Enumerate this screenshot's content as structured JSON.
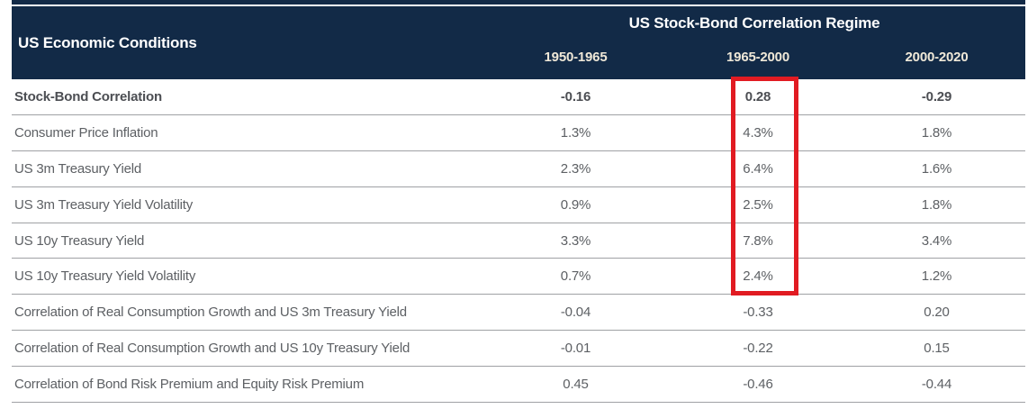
{
  "table": {
    "header": {
      "row_label_title": "US Economic Conditions",
      "group_title": "US Stock-Bond Correlation Regime",
      "columns": [
        "1950-1965",
        "1965-2000",
        "2000-2020"
      ]
    },
    "rows": [
      {
        "label": "Stock-Bond Correlation",
        "bold": true,
        "values": [
          "-0.16",
          "0.28",
          "-0.29"
        ]
      },
      {
        "label": "Consumer Price Inflation",
        "bold": false,
        "values": [
          "1.3%",
          "4.3%",
          "1.8%"
        ]
      },
      {
        "label": "US 3m Treasury Yield",
        "bold": false,
        "values": [
          "2.3%",
          "6.4%",
          "1.6%"
        ]
      },
      {
        "label": "US 3m Treasury Yield Volatility",
        "bold": false,
        "values": [
          "0.9%",
          "2.5%",
          "1.8%"
        ]
      },
      {
        "label": "US 10y Treasury Yield",
        "bold": false,
        "values": [
          "3.3%",
          "7.8%",
          "3.4%"
        ]
      },
      {
        "label": "US 10y Treasury Yield Volatility",
        "bold": false,
        "values": [
          "0.7%",
          "2.4%",
          "1.2%"
        ]
      },
      {
        "label": "Correlation of Real Consumption Growth and US 3m Treasury Yield",
        "bold": false,
        "values": [
          "-0.04",
          "-0.33",
          "0.20"
        ]
      },
      {
        "label": "Correlation of Real Consumption Growth and US 10y Treasury Yield",
        "bold": false,
        "values": [
          "-0.01",
          "-0.22",
          "0.15"
        ]
      },
      {
        "label": "Correlation of Bond Risk Premium and Equity Risk Premium",
        "bold": false,
        "values": [
          "0.45",
          "-0.46",
          "-0.44"
        ]
      }
    ],
    "highlight": {
      "column": "1965-2000",
      "rows_covered": [
        "Stock-Bond Correlation",
        "Consumer Price Inflation",
        "US 3m Treasury Yield",
        "US 3m Treasury Yield Volatility",
        "US 10y Treasury Yield",
        "US 10y Treasury Yield Volatility"
      ],
      "color": "#e11b22"
    },
    "colors": {
      "header_bg": "#122a47",
      "header_text": "#ffffff",
      "year_text": "#efe8d8",
      "row_text": "#5d6064",
      "bold_row_text": "#4c4e53",
      "divider": "#9fa1a4",
      "highlight_border": "#e11b22"
    }
  },
  "chart_data": {
    "type": "table",
    "title": "US Stock-Bond Correlation Regime",
    "row_header": "US Economic Conditions",
    "columns": [
      "1950-1965",
      "1965-2000",
      "2000-2020"
    ],
    "rows": [
      "Stock-Bond Correlation",
      "Consumer Price Inflation",
      "US 3m Treasury Yield",
      "US 3m Treasury Yield Volatility",
      "US 10y Treasury Yield",
      "US 10y Treasury Yield Volatility",
      "Correlation of Real Consumption Growth and US 3m Treasury Yield",
      "Correlation of Real Consumption Growth and US 10y Treasury Yield",
      "Correlation of Bond Risk Premium and Equity Risk Premium"
    ],
    "values": [
      [
        -0.16,
        0.28,
        -0.29
      ],
      [
        "1.3%",
        "4.3%",
        "1.8%"
      ],
      [
        "2.3%",
        "6.4%",
        "1.6%"
      ],
      [
        "0.9%",
        "2.5%",
        "1.8%"
      ],
      [
        "3.3%",
        "7.8%",
        "3.4%"
      ],
      [
        "0.7%",
        "2.4%",
        "1.2%"
      ],
      [
        -0.04,
        -0.33,
        0.2
      ],
      [
        -0.01,
        -0.22,
        0.15
      ],
      [
        0.45,
        -0.46,
        -0.44
      ]
    ],
    "annotations": [
      "Red rectangle highlights the 1965-2000 column values from Stock-Bond Correlation (0.28) through US 10y Treasury Yield Volatility (2.4%)"
    ],
    "layout": "header row spans three regime period columns; first data row bold"
  }
}
